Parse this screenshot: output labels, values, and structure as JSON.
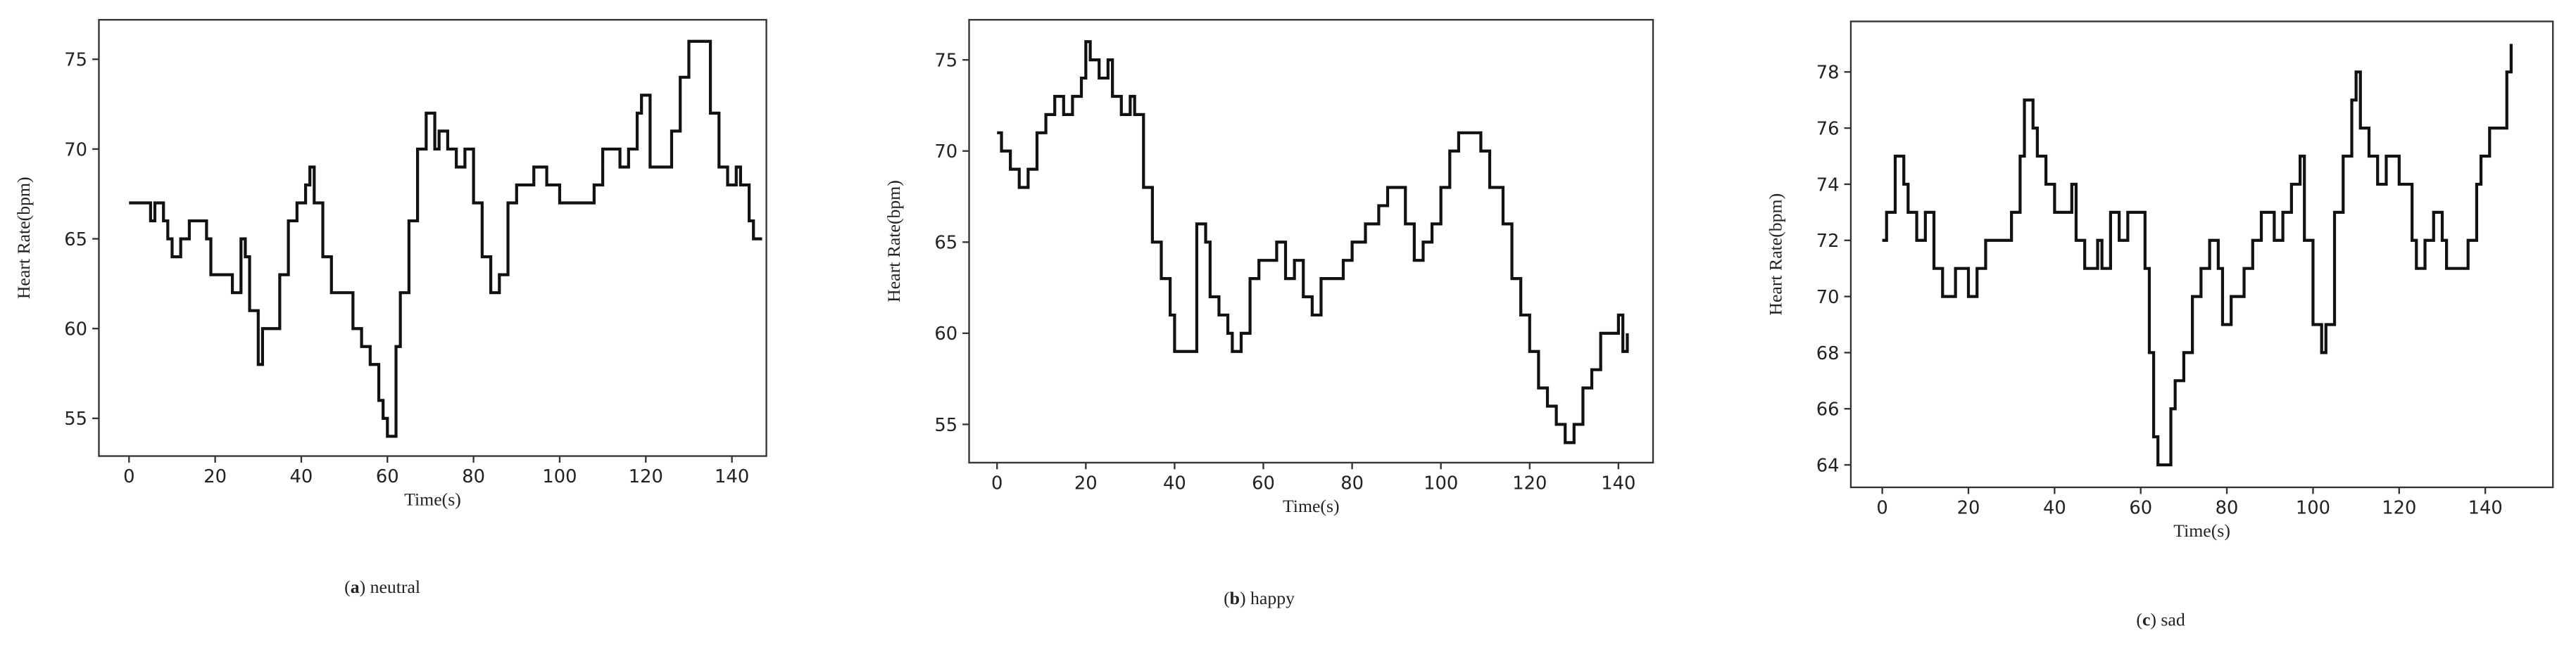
{
  "chart_data": [
    {
      "type": "line",
      "step": "post",
      "caption": [
        "(",
        "a",
        ") neutral"
      ],
      "xlabel": "Time(s)",
      "ylabel": "Heart Rate(bpm)",
      "color": "#111111",
      "x": [
        0,
        2,
        4,
        5,
        6,
        8,
        9,
        10,
        12,
        14,
        16,
        18,
        19,
        22,
        24,
        26,
        27,
        28,
        30,
        31,
        33,
        35,
        37,
        39,
        41,
        42,
        43,
        45,
        47,
        50,
        52,
        54,
        56,
        58,
        59,
        60,
        62,
        63,
        65,
        67,
        69,
        71,
        72,
        74,
        76,
        78,
        80,
        82,
        84,
        86,
        88,
        90,
        92,
        94,
        97,
        100,
        105,
        108,
        110,
        114,
        116,
        118,
        119,
        121,
        124,
        126,
        128,
        130,
        133,
        135,
        137,
        139,
        141,
        142,
        144,
        145,
        147
      ],
      "values": [
        67,
        67,
        67,
        66,
        67,
        66,
        65,
        64,
        65,
        66,
        66,
        65,
        63,
        63,
        62,
        65,
        64,
        61,
        58,
        60,
        60,
        63,
        66,
        67,
        68,
        69,
        67,
        64,
        62,
        62,
        60,
        59,
        58,
        56,
        55,
        54,
        59,
        62,
        66,
        70,
        72,
        70,
        71,
        70,
        69,
        70,
        67,
        64,
        62,
        63,
        67,
        68,
        68,
        69,
        68,
        67,
        67,
        68,
        70,
        69,
        70,
        72,
        73,
        69,
        69,
        71,
        74,
        76,
        76,
        72,
        69,
        68,
        69,
        68,
        66,
        65,
        65
      ],
      "xlim": [
        -7,
        148
      ],
      "ylim": [
        52.9,
        77.2
      ],
      "xticks": [
        0,
        20,
        40,
        60,
        80,
        100,
        120,
        140
      ],
      "yticks": [
        55,
        60,
        65,
        70,
        75
      ]
    },
    {
      "type": "line",
      "step": "post",
      "caption": [
        "(",
        "b",
        ") happy"
      ],
      "xlabel": "Time(s)",
      "ylabel": "Heart Rate(bpm)",
      "color": "#111111",
      "x": [
        0,
        1,
        3,
        5,
        7,
        9,
        11,
        13,
        15,
        17,
        19,
        20,
        21,
        23,
        25,
        26,
        28,
        30,
        31,
        33,
        35,
        37,
        39,
        40,
        43,
        45,
        47,
        48,
        50,
        52,
        53,
        55,
        57,
        59,
        61,
        63,
        65,
        67,
        69,
        71,
        73,
        75,
        78,
        80,
        83,
        86,
        88,
        90,
        92,
        94,
        96,
        98,
        100,
        102,
        104,
        107,
        109,
        111,
        114,
        116,
        118,
        120,
        122,
        124,
        126,
        128,
        130,
        132,
        134,
        136,
        138,
        140,
        141,
        142
      ],
      "values": [
        71,
        70,
        69,
        68,
        69,
        71,
        72,
        73,
        72,
        73,
        74,
        76,
        75,
        74,
        75,
        73,
        72,
        73,
        72,
        68,
        65,
        63,
        61,
        59,
        59,
        66,
        65,
        62,
        61,
        60,
        59,
        60,
        63,
        64,
        64,
        65,
        63,
        64,
        62,
        61,
        63,
        63,
        64,
        65,
        66,
        67,
        68,
        68,
        66,
        64,
        65,
        66,
        68,
        70,
        71,
        71,
        70,
        68,
        66,
        63,
        61,
        59,
        57,
        56,
        55,
        54,
        55,
        57,
        58,
        60,
        60,
        61,
        59,
        60
      ],
      "xlim": [
        -6.3,
        147.8
      ],
      "ylim": [
        52.9,
        77.2
      ],
      "xticks": [
        0,
        20,
        40,
        60,
        80,
        100,
        120,
        140
      ],
      "yticks": [
        55,
        60,
        65,
        70,
        75
      ]
    },
    {
      "type": "line",
      "step": "post",
      "caption": [
        "(",
        "c",
        ") sad"
      ],
      "xlabel": "Time(s)",
      "ylabel": "Heart Rate(bpm)",
      "color": "#111111",
      "x": [
        0,
        1,
        3,
        5,
        6,
        8,
        10,
        12,
        14,
        17,
        20,
        22,
        24,
        28,
        30,
        32,
        33,
        35,
        36,
        38,
        40,
        43,
        44,
        45,
        47,
        50,
        51,
        53,
        55,
        57,
        60,
        61,
        62,
        63,
        64,
        67,
        68,
        70,
        72,
        74,
        76,
        78,
        79,
        81,
        84,
        86,
        88,
        91,
        93,
        95,
        97,
        98,
        100,
        102,
        103,
        105,
        107,
        109,
        110,
        111,
        113,
        115,
        117,
        120,
        123,
        124,
        126,
        128,
        130,
        131,
        134,
        136,
        138,
        139,
        141,
        143,
        145,
        146
      ],
      "values": [
        72,
        73,
        75,
        74,
        73,
        72,
        73,
        71,
        70,
        71,
        70,
        71,
        72,
        72,
        73,
        75,
        77,
        76,
        75,
        74,
        73,
        73,
        74,
        72,
        71,
        72,
        71,
        73,
        72,
        73,
        73,
        71,
        68,
        65,
        64,
        66,
        67,
        68,
        70,
        71,
        72,
        71,
        69,
        70,
        71,
        72,
        73,
        72,
        73,
        74,
        75,
        72,
        69,
        68,
        69,
        73,
        75,
        77,
        78,
        76,
        75,
        74,
        75,
        74,
        72,
        71,
        72,
        73,
        72,
        71,
        71,
        72,
        74,
        75,
        76,
        76,
        78,
        79
      ],
      "xlim": [
        -7.3,
        155.7
      ],
      "ylim": [
        63.2,
        79.8
      ],
      "xticks": [
        0,
        20,
        40,
        60,
        80,
        100,
        120,
        140
      ],
      "yticks": [
        64,
        66,
        68,
        70,
        72,
        74,
        76,
        78
      ]
    }
  ]
}
